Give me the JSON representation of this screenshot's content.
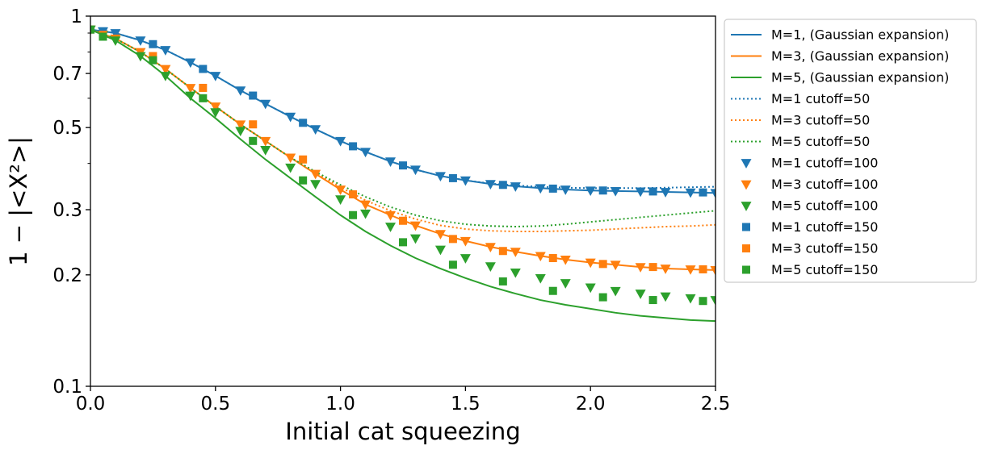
{
  "chart_data": {
    "type": "line",
    "xlabel": "Initial cat squeezing",
    "ylabel": "1 − |<X²>|",
    "xlim": [
      0,
      2.5
    ],
    "ylim": [
      0.1,
      1
    ],
    "yscale": "log",
    "grid": false,
    "legend_position": "outside-right",
    "x_ticks": [
      0.0,
      0.5,
      1.0,
      1.5,
      2.0,
      2.5
    ],
    "x_tick_labels": [
      "0.0",
      "0.5",
      "1.0",
      "1.5",
      "2.0",
      "2.5"
    ],
    "y_ticks": [
      0.1,
      0.2,
      0.3,
      0.5,
      0.7,
      1
    ],
    "y_tick_labels": [
      "0.1",
      "0.2",
      "0.3",
      "0.5",
      "0.7",
      "1"
    ],
    "colors": {
      "M1": "#1f77b4",
      "M3": "#ff7f0e",
      "M5": "#2ca02c"
    },
    "series": [
      {
        "name": "M=1, (Gaussian expansion)",
        "color": "#1f77b4",
        "style": "solid",
        "x": [
          0,
          0.1,
          0.2,
          0.3,
          0.4,
          0.5,
          0.6,
          0.7,
          0.8,
          0.9,
          1.0,
          1.1,
          1.2,
          1.3,
          1.4,
          1.5,
          1.6,
          1.7,
          1.8,
          1.9,
          2.0,
          2.1,
          2.2,
          2.3,
          2.4,
          2.5
        ],
        "y": [
          0.92,
          0.9,
          0.86,
          0.81,
          0.75,
          0.69,
          0.63,
          0.58,
          0.535,
          0.495,
          0.46,
          0.43,
          0.405,
          0.385,
          0.37,
          0.36,
          0.352,
          0.347,
          0.343,
          0.34,
          0.338,
          0.337,
          0.336,
          0.335,
          0.334,
          0.333
        ]
      },
      {
        "name": "M=3, (Gaussian expansion)",
        "color": "#ff7f0e",
        "style": "solid",
        "x": [
          0,
          0.1,
          0.2,
          0.3,
          0.4,
          0.5,
          0.6,
          0.7,
          0.8,
          0.9,
          1.0,
          1.1,
          1.2,
          1.3,
          1.4,
          1.5,
          1.6,
          1.7,
          1.8,
          1.9,
          2.0,
          2.1,
          2.2,
          2.3,
          2.4,
          2.5
        ],
        "y": [
          0.92,
          0.87,
          0.8,
          0.72,
          0.64,
          0.57,
          0.51,
          0.46,
          0.415,
          0.375,
          0.34,
          0.31,
          0.29,
          0.272,
          0.258,
          0.247,
          0.238,
          0.231,
          0.225,
          0.22,
          0.216,
          0.213,
          0.21,
          0.208,
          0.207,
          0.206
        ]
      },
      {
        "name": "M=5, (Gaussian expansion)",
        "color": "#2ca02c",
        "style": "solid",
        "x": [
          0,
          0.1,
          0.2,
          0.3,
          0.4,
          0.5,
          0.6,
          0.7,
          0.8,
          0.9,
          1.0,
          1.1,
          1.2,
          1.3,
          1.4,
          1.5,
          1.6,
          1.7,
          1.8,
          1.9,
          2.0,
          2.1,
          2.2,
          2.3,
          2.4,
          2.5
        ],
        "y": [
          0.92,
          0.86,
          0.78,
          0.69,
          0.6,
          0.53,
          0.465,
          0.41,
          0.365,
          0.325,
          0.29,
          0.262,
          0.24,
          0.222,
          0.208,
          0.196,
          0.186,
          0.178,
          0.171,
          0.166,
          0.162,
          0.158,
          0.155,
          0.153,
          0.151,
          0.15
        ]
      },
      {
        "name": "M=1 cutoff=50",
        "color": "#1f77b4",
        "style": "dotted",
        "x": [
          0,
          0.1,
          0.2,
          0.3,
          0.4,
          0.5,
          0.6,
          0.7,
          0.8,
          0.9,
          1.0,
          1.1,
          1.2,
          1.3,
          1.4,
          1.5,
          1.6,
          1.7,
          1.8,
          1.9,
          2.0,
          2.1,
          2.2,
          2.3,
          2.4,
          2.5
        ],
        "y": [
          0.92,
          0.9,
          0.86,
          0.81,
          0.75,
          0.69,
          0.63,
          0.58,
          0.535,
          0.495,
          0.46,
          0.43,
          0.405,
          0.385,
          0.37,
          0.36,
          0.353,
          0.349,
          0.346,
          0.344,
          0.343,
          0.343,
          0.343,
          0.344,
          0.345,
          0.346
        ]
      },
      {
        "name": "M=3 cutoff=50",
        "color": "#ff7f0e",
        "style": "dotted",
        "x": [
          0,
          0.1,
          0.2,
          0.3,
          0.4,
          0.5,
          0.6,
          0.7,
          0.8,
          0.9,
          1.0,
          1.1,
          1.2,
          1.3,
          1.4,
          1.5,
          1.6,
          1.7,
          1.8,
          1.9,
          2.0,
          2.1,
          2.2,
          2.3,
          2.4,
          2.5
        ],
        "y": [
          0.92,
          0.87,
          0.8,
          0.72,
          0.64,
          0.57,
          0.51,
          0.46,
          0.415,
          0.378,
          0.345,
          0.318,
          0.298,
          0.283,
          0.272,
          0.266,
          0.263,
          0.262,
          0.262,
          0.263,
          0.264,
          0.266,
          0.268,
          0.27,
          0.271,
          0.273
        ]
      },
      {
        "name": "M=5 cutoff=50",
        "color": "#2ca02c",
        "style": "dotted",
        "x": [
          0,
          0.1,
          0.2,
          0.3,
          0.4,
          0.5,
          0.6,
          0.7,
          0.8,
          0.9,
          1.0,
          1.1,
          1.2,
          1.3,
          1.4,
          1.5,
          1.6,
          1.7,
          1.8,
          1.9,
          2.0,
          2.1,
          2.2,
          2.3,
          2.4,
          2.5
        ],
        "y": [
          0.92,
          0.87,
          0.8,
          0.72,
          0.64,
          0.57,
          0.51,
          0.46,
          0.415,
          0.38,
          0.35,
          0.325,
          0.305,
          0.29,
          0.28,
          0.274,
          0.271,
          0.27,
          0.271,
          0.274,
          0.278,
          0.282,
          0.286,
          0.29,
          0.294,
          0.298
        ]
      },
      {
        "name": "M=1 cutoff=100",
        "color": "#1f77b4",
        "marker": "triangle-down",
        "x": [
          0,
          0.05,
          0.1,
          0.2,
          0.3,
          0.4,
          0.5,
          0.6,
          0.7,
          0.8,
          0.9,
          1.0,
          1.1,
          1.2,
          1.3,
          1.4,
          1.5,
          1.6,
          1.7,
          1.8,
          1.9,
          2.0,
          2.1,
          2.2,
          2.3,
          2.4,
          2.5
        ],
        "y": [
          0.92,
          0.91,
          0.9,
          0.86,
          0.81,
          0.75,
          0.69,
          0.63,
          0.58,
          0.535,
          0.495,
          0.46,
          0.43,
          0.405,
          0.385,
          0.37,
          0.36,
          0.352,
          0.347,
          0.343,
          0.34,
          0.338,
          0.337,
          0.336,
          0.335,
          0.334,
          0.333
        ]
      },
      {
        "name": "M=3 cutoff=100",
        "color": "#ff7f0e",
        "marker": "triangle-down",
        "x": [
          0,
          0.05,
          0.1,
          0.2,
          0.3,
          0.4,
          0.5,
          0.6,
          0.7,
          0.8,
          0.9,
          1.0,
          1.1,
          1.2,
          1.3,
          1.4,
          1.5,
          1.6,
          1.7,
          1.8,
          1.9,
          2.0,
          2.1,
          2.2,
          2.3,
          2.4,
          2.5
        ],
        "y": [
          0.92,
          0.89,
          0.87,
          0.8,
          0.72,
          0.64,
          0.57,
          0.51,
          0.46,
          0.415,
          0.375,
          0.34,
          0.31,
          0.29,
          0.272,
          0.258,
          0.247,
          0.238,
          0.231,
          0.225,
          0.22,
          0.216,
          0.213,
          0.21,
          0.208,
          0.207,
          0.206
        ]
      },
      {
        "name": "M=5 cutoff=100",
        "color": "#2ca02c",
        "marker": "triangle-down",
        "x": [
          0,
          0.05,
          0.1,
          0.2,
          0.3,
          0.4,
          0.5,
          0.6,
          0.7,
          0.8,
          0.9,
          1.0,
          1.1,
          1.2,
          1.3,
          1.4,
          1.5,
          1.6,
          1.7,
          1.8,
          1.9,
          2.0,
          2.1,
          2.2,
          2.3,
          2.4,
          2.5
        ],
        "y": [
          0.92,
          0.89,
          0.86,
          0.78,
          0.69,
          0.61,
          0.55,
          0.49,
          0.435,
          0.39,
          0.352,
          0.32,
          0.293,
          0.27,
          0.251,
          0.234,
          0.222,
          0.211,
          0.203,
          0.196,
          0.19,
          0.185,
          0.181,
          0.178,
          0.175,
          0.173,
          0.171
        ]
      },
      {
        "name": "M=1 cutoff=150",
        "color": "#1f77b4",
        "marker": "square",
        "x": [
          0,
          0.05,
          0.25,
          0.45,
          0.65,
          0.85,
          1.05,
          1.25,
          1.45,
          1.65,
          1.85,
          2.05,
          2.25,
          2.45
        ],
        "y": [
          0.92,
          0.91,
          0.84,
          0.72,
          0.61,
          0.515,
          0.445,
          0.395,
          0.365,
          0.35,
          0.342,
          0.338,
          0.336,
          0.334
        ]
      },
      {
        "name": "M=3 cutoff=150",
        "color": "#ff7f0e",
        "marker": "square",
        "x": [
          0,
          0.05,
          0.25,
          0.45,
          0.65,
          0.85,
          1.05,
          1.25,
          1.45,
          1.65,
          1.85,
          2.05,
          2.25,
          2.45
        ],
        "y": [
          0.92,
          0.89,
          0.78,
          0.64,
          0.51,
          0.41,
          0.33,
          0.28,
          0.25,
          0.232,
          0.222,
          0.214,
          0.21,
          0.207
        ]
      },
      {
        "name": "M=5 cutoff=150",
        "color": "#2ca02c",
        "marker": "square",
        "x": [
          0,
          0.05,
          0.25,
          0.45,
          0.65,
          0.85,
          1.05,
          1.25,
          1.45,
          1.65,
          1.85,
          2.05,
          2.25,
          2.45
        ],
        "y": [
          0.92,
          0.88,
          0.76,
          0.6,
          0.46,
          0.36,
          0.29,
          0.245,
          0.213,
          0.192,
          0.181,
          0.174,
          0.171,
          0.17
        ]
      }
    ]
  }
}
